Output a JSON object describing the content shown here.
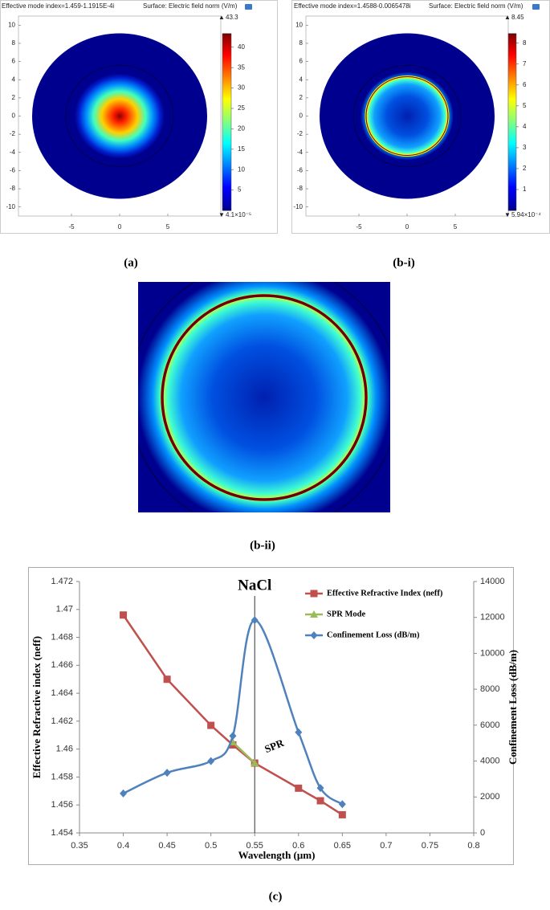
{
  "captions": [
    "(a)",
    "(b-i)",
    "(b-ii)",
    "(c)"
  ],
  "chart_data": [
    {
      "type": "field",
      "title": "Effective mode index=1.459-1.1915E-4i",
      "subtitle": "Surface: Electric field norm (V/m)",
      "xlim": [
        -10.5,
        10.5
      ],
      "ylim": [
        -11,
        11
      ],
      "xticks": [
        -5,
        0,
        5
      ],
      "yticks": [
        -10,
        -8,
        -6,
        -4,
        -2,
        0,
        2,
        4,
        6,
        8,
        10
      ],
      "colorbar": {
        "min": {
          "value": 4.1e-05,
          "label": "4.1×10⁻⁵"
        },
        "max": 43.3,
        "ticks": [
          5,
          10,
          15,
          20,
          25,
          30,
          35,
          40
        ]
      }
    },
    {
      "type": "field",
      "title": "Effective mode index=1.4588-0.0065478i",
      "subtitle": "Surface: Electric field norm (V/m)",
      "xlim": [
        -10.5,
        10.5
      ],
      "ylim": [
        -11,
        11
      ],
      "xticks": [
        -5,
        0,
        5
      ],
      "yticks": [
        -10,
        -8,
        -6,
        -4,
        -2,
        0,
        2,
        4,
        6,
        8,
        10
      ],
      "colorbar": {
        "min": {
          "value": 0.000594,
          "label": "5.94×10⁻⁴"
        },
        "max": 8.45,
        "ticks": [
          1,
          2,
          3,
          4,
          5,
          6,
          7,
          8
        ]
      }
    },
    {
      "type": "line",
      "xlabel": "Wavelength (μm)",
      "ylabel": "Effective Refractive index (neff)",
      "y2label": "Confinement Loss (dB/m)",
      "xlim": [
        0.35,
        0.8
      ],
      "xticks": [
        0.35,
        0.4,
        0.45,
        0.5,
        0.55,
        0.6,
        0.65,
        0.7,
        0.75,
        0.8
      ],
      "ylim": [
        1.454,
        1.472
      ],
      "yticks": [
        1.454,
        1.456,
        1.458,
        1.46,
        1.462,
        1.464,
        1.466,
        1.468,
        1.47,
        1.472
      ],
      "y2lim": [
        0,
        14000
      ],
      "y2ticks": [
        0,
        2000,
        4000,
        6000,
        8000,
        10000,
        12000,
        14000
      ],
      "legend": "upper right",
      "series": [
        {
          "name": "Effective Refractive Index (neff)",
          "color": "#c0504d",
          "marker": "square",
          "x": [
            0.4,
            0.45,
            0.5,
            0.525,
            0.55,
            0.6,
            0.625,
            0.65
          ],
          "values": [
            1.4696,
            1.465,
            1.4617,
            1.4603,
            1.459,
            1.4572,
            1.4563,
            1.4553
          ]
        },
        {
          "name": "SPR Mode",
          "color": "#9bbb59",
          "marker": "triangle",
          "x": [
            0.525,
            0.55
          ],
          "values": [
            1.4605,
            1.459
          ]
        },
        {
          "name": "Confinement Loss (dB/m)",
          "color": "#4f81bd",
          "marker": "diamond",
          "axis": "y2",
          "smooth": true,
          "x": [
            0.4,
            0.45,
            0.5,
            0.525,
            0.55,
            0.6,
            0.625,
            0.65
          ],
          "values": [
            2200,
            3350,
            4000,
            5400,
            11850,
            5600,
            2500,
            1600
          ]
        }
      ],
      "annotations": [
        {
          "text": "NaCl",
          "x": 0.55
        },
        {
          "text": "SPR"
        }
      ]
    }
  ]
}
